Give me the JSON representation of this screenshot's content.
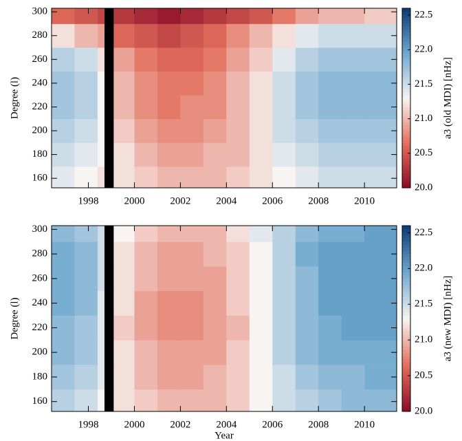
{
  "chart_data": [
    {
      "type": "heatmap",
      "ylabel": "Degree (l)",
      "colorbar_label": "a3 (old MDI) [nHz]",
      "x_edges": [
        1996.4,
        1997.4,
        1998.4,
        1998.7,
        1999.1,
        2000,
        2001,
        2002,
        2003,
        2004,
        2005,
        2006,
        2007,
        2008,
        2009,
        2010,
        2011.4
      ],
      "y_edges": [
        152,
        170,
        190,
        210,
        230,
        250,
        270,
        290,
        303
      ],
      "z": [
        [
          21.4,
          21.3,
          21.2,
          null,
          21.2,
          21.1,
          21.0,
          21.0,
          21.0,
          21.1,
          21.2,
          21.3,
          21.4,
          21.5,
          21.5,
          21.5
        ],
        [
          21.5,
          21.4,
          21.3,
          null,
          21.2,
          21.0,
          20.9,
          20.9,
          21.0,
          21.0,
          21.2,
          21.4,
          21.5,
          21.6,
          21.6,
          21.6
        ],
        [
          21.6,
          21.5,
          21.3,
          null,
          21.1,
          20.9,
          20.8,
          20.8,
          20.9,
          21.0,
          21.2,
          21.5,
          21.6,
          21.7,
          21.7,
          21.7
        ],
        [
          21.7,
          21.6,
          21.3,
          null,
          21.0,
          20.8,
          20.7,
          20.8,
          20.8,
          21.0,
          21.2,
          21.5,
          21.7,
          21.8,
          21.8,
          21.8
        ],
        [
          21.7,
          21.6,
          21.3,
          null,
          21.0,
          20.8,
          20.7,
          20.7,
          20.8,
          21.0,
          21.2,
          21.5,
          21.7,
          21.8,
          21.8,
          21.8
        ],
        [
          21.6,
          21.5,
          21.2,
          null,
          20.9,
          20.7,
          20.6,
          20.6,
          20.7,
          20.9,
          21.1,
          21.4,
          21.6,
          21.7,
          21.7,
          21.7
        ],
        [
          21.2,
          21.0,
          20.9,
          null,
          20.6,
          20.5,
          20.4,
          20.5,
          20.6,
          20.8,
          21.0,
          21.2,
          21.4,
          21.5,
          21.5,
          21.5
        ],
        [
          20.6,
          20.5,
          20.4,
          null,
          20.3,
          20.2,
          20.1,
          20.2,
          20.3,
          20.4,
          20.5,
          20.7,
          20.9,
          21.0,
          21.0,
          21.1
        ]
      ],
      "xlim": [
        1996.4,
        2011.4
      ],
      "ylim": [
        152,
        303
      ],
      "xticks": [
        1998,
        2000,
        2002,
        2004,
        2006,
        2008,
        2010
      ],
      "yticks": [
        160,
        180,
        200,
        220,
        240,
        260,
        280,
        300
      ],
      "clim": [
        20.0,
        22.6
      ],
      "cticks": [
        {
          "value": 20,
          "label": "20.0"
        },
        20.5,
        {
          "value": 21,
          "label": "21.0"
        },
        21.5,
        {
          "value": 22,
          "label": "22.0"
        },
        22.5
      ],
      "colormap": [
        "#8b0a26",
        "#e36f5c",
        "#f7f4f2",
        "#6fa8d0",
        "#0c3a75"
      ]
    },
    {
      "type": "heatmap",
      "xlabel": "Year",
      "ylabel": "Degree (l)",
      "colorbar_label": "a3 (new MDI) [nHz]",
      "x_edges": [
        1996.4,
        1997.4,
        1998.4,
        1998.7,
        1999.1,
        2000,
        2001,
        2002,
        2003,
        2004,
        2005,
        2006,
        2007,
        2008,
        2009,
        2010,
        2011.4
      ],
      "y_edges": [
        152,
        170,
        190,
        210,
        230,
        250,
        270,
        290,
        303
      ],
      "z": [
        [
          21.6,
          21.5,
          21.3,
          null,
          21.2,
          21.1,
          21.0,
          21.0,
          21.0,
          21.1,
          21.3,
          21.5,
          21.6,
          21.7,
          21.8,
          21.8
        ],
        [
          21.7,
          21.6,
          21.4,
          null,
          21.2,
          21.0,
          20.9,
          20.9,
          21.0,
          21.1,
          21.3,
          21.5,
          21.7,
          21.8,
          21.8,
          21.9
        ],
        [
          21.8,
          21.7,
          21.4,
          null,
          21.2,
          21.0,
          20.9,
          20.9,
          20.9,
          21.1,
          21.3,
          21.6,
          21.8,
          21.9,
          21.9,
          21.9
        ],
        [
          21.8,
          21.7,
          21.4,
          null,
          21.1,
          20.9,
          20.8,
          20.8,
          20.9,
          21.0,
          21.3,
          21.6,
          21.8,
          21.9,
          22.0,
          22.0
        ],
        [
          21.9,
          21.8,
          21.4,
          null,
          21.2,
          20.9,
          20.8,
          20.8,
          20.9,
          21.1,
          21.3,
          21.6,
          21.8,
          22.0,
          22.0,
          22.0
        ],
        [
          21.9,
          21.8,
          21.5,
          null,
          21.2,
          21.0,
          20.9,
          20.9,
          20.9,
          21.1,
          21.3,
          21.6,
          21.8,
          22.0,
          22.0,
          22.0
        ],
        [
          21.9,
          21.8,
          21.5,
          null,
          21.2,
          21.0,
          20.9,
          20.9,
          21.0,
          21.1,
          21.3,
          21.6,
          21.9,
          22.0,
          22.0,
          22.0
        ],
        [
          21.8,
          21.7,
          21.5,
          null,
          21.3,
          21.1,
          21.0,
          21.0,
          21.0,
          21.2,
          21.4,
          21.6,
          21.8,
          21.9,
          21.9,
          22.0
        ]
      ],
      "xlim": [
        1996.4,
        2011.4
      ],
      "ylim": [
        152,
        303
      ],
      "xticks": [
        1998,
        2000,
        2002,
        2004,
        2006,
        2008,
        2010
      ],
      "yticks": [
        160,
        180,
        200,
        220,
        240,
        260,
        280,
        300
      ],
      "clim": [
        20.0,
        22.6
      ],
      "cticks": [
        {
          "value": 20,
          "label": "20.0"
        },
        20.5,
        {
          "value": 21,
          "label": "21.0"
        },
        21.5,
        {
          "value": 22,
          "label": "22.0"
        },
        22.5
      ],
      "colormap": [
        "#8b0a26",
        "#e36f5c",
        "#f7f4f2",
        "#6fa8d0",
        "#0c3a75"
      ]
    }
  ]
}
